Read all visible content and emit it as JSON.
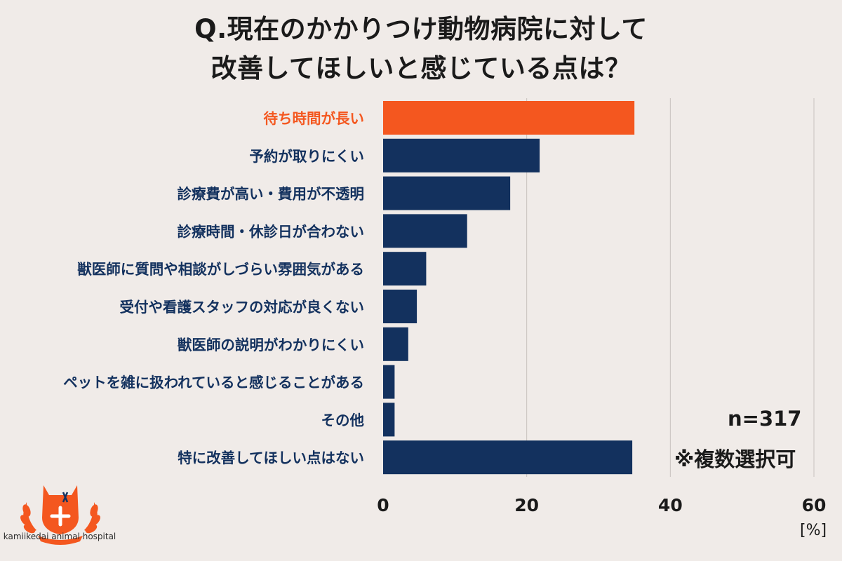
{
  "title": {
    "line1": "Q.現在のかかりつけ動物病院に対して",
    "line2": "改善してほしいと感じている点は？"
  },
  "notes": {
    "n": "n=317",
    "multiple": "※複数選択可",
    "unit": "[%]"
  },
  "logo": {
    "name": "kamiikedai animal hospital"
  },
  "colors": {
    "highlight": "#f4571f",
    "bar": "#13315e",
    "highlight_text": "#f4571f",
    "label_text": "#13315e",
    "grid": "#c8c2be"
  },
  "chart_data": {
    "type": "bar",
    "orientation": "horizontal",
    "categories": [
      "待ち時間が長い",
      "予約が取りにくい",
      "診療費が高い・費用が不透明",
      "診療時間・休診日が合わない",
      "獣医師に質問や相談がしづらい雰囲気がある",
      "受付や看護スタッフの対応が良くない",
      "獣医師の説明がわかりにくい",
      "ペットを雑に扱われていると感じることがある",
      "その他",
      "特に改善してほしい点はない"
    ],
    "values": [
      35.0,
      21.8,
      17.7,
      11.7,
      6.0,
      4.7,
      3.5,
      1.6,
      1.6,
      34.7
    ],
    "highlight_index": 0,
    "xlim": [
      0,
      60
    ],
    "xticks": [
      0,
      20,
      40,
      60
    ],
    "xlabel": "",
    "ylabel": "",
    "grid": true
  }
}
